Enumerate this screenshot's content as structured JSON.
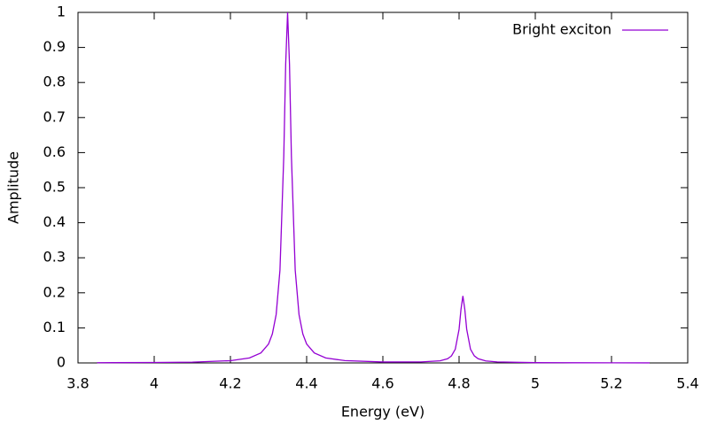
{
  "chart_data": {
    "type": "line",
    "x_label": "Energy (eV)",
    "y_label": "Amplitude",
    "xlim": [
      3.8,
      5.4
    ],
    "xticks": [
      3.8,
      4,
      4.2,
      4.4,
      4.6,
      4.8,
      5,
      5.2,
      5.4
    ],
    "ylim": [
      0,
      1
    ],
    "yticks": [
      0,
      0.1,
      0.2,
      0.3,
      0.4,
      0.5,
      0.6,
      0.7,
      0.8,
      0.9,
      1
    ],
    "legend": "top-right",
    "x": [
      3.85,
      4.0,
      4.1,
      4.2,
      4.25,
      4.28,
      4.3,
      4.31,
      4.32,
      4.33,
      4.34,
      4.345,
      4.35,
      4.355,
      4.36,
      4.37,
      4.38,
      4.39,
      4.4,
      4.42,
      4.45,
      4.5,
      4.6,
      4.7,
      4.75,
      4.77,
      4.78,
      4.79,
      4.8,
      4.805,
      4.81,
      4.815,
      4.82,
      4.83,
      4.84,
      4.85,
      4.87,
      4.9,
      5.0,
      5.1,
      5.2,
      5.3
    ],
    "series": [
      {
        "name": "Bright exciton",
        "color": "#9400d3",
        "values": [
          0.0006,
          0.0012,
          0.0023,
          0.0064,
          0.0142,
          0.0286,
          0.054,
          0.0826,
          0.138,
          0.265,
          0.59,
          0.852,
          1,
          0.852,
          0.59,
          0.265,
          0.138,
          0.0826,
          0.054,
          0.0286,
          0.0142,
          0.0066,
          0.0027,
          0.0028,
          0.006,
          0.012,
          0.02,
          0.039,
          0.096,
          0.153,
          0.191,
          0.153,
          0.096,
          0.039,
          0.02,
          0.012,
          0.0056,
          0.0028,
          0.0008,
          0.0005,
          0.0003,
          0.0002
        ]
      }
    ]
  }
}
